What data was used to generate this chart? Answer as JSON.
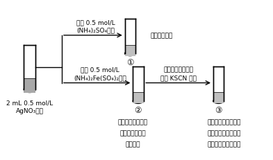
{
  "bg_color": "#ffffff",
  "tube0_label1": "2 mL 0.5 mol/L",
  "tube0_label2": "AgNO₃溶液",
  "tube1_circle": "①",
  "tube1_result": "只有白色沉淠",
  "tube2_circle": "②",
  "tube3_circle": "③",
  "label_top_line1": "几滴 0.5 mol/L",
  "label_top_line2": "(NH₄)₂SO₄溶液",
  "label_mid_line1": "几滴 0.5 mol/L",
  "label_mid_line2": "(NH₄)₂Fe(SO₄)₂溶液",
  "label_right_line1": "取上层清液，滴加",
  "label_right_line2": "几滴 KSCN 溶液",
  "note2_line1": "有白色沉淠生成，",
  "note2_line2": "试管壁上逐渐有",
  "note2_line3": "銀镜附着",
  "note3_line1": "产生白色沉淠，溶液",
  "note3_line2": "局部变红，振荡后红",
  "note3_line3": "色消失，沉淠量增加"
}
